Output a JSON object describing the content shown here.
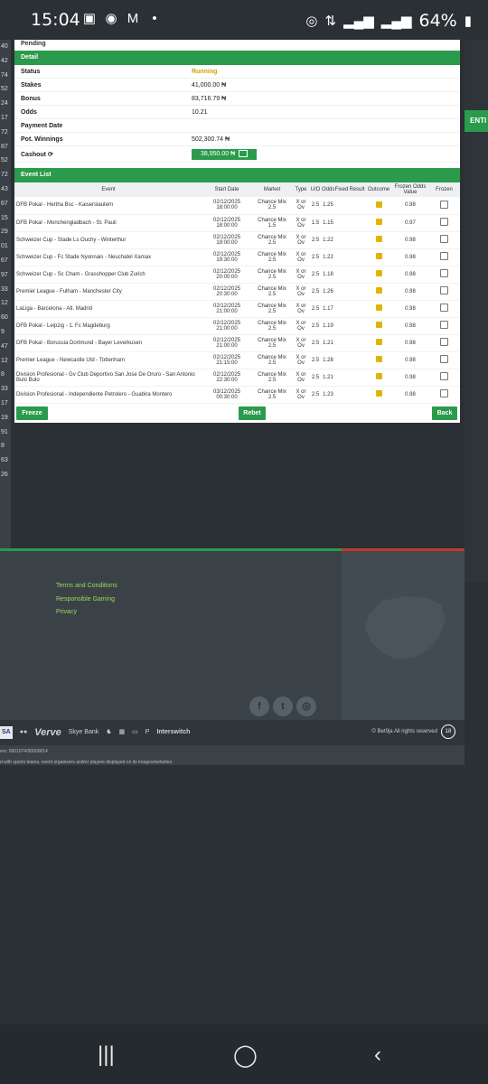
{
  "status_bar": {
    "time": "15:04",
    "battery": "64%",
    "icons": [
      "gallery-icon",
      "whatsapp-icon",
      "gmail-icon",
      "dot-icon",
      "hotspot-icon",
      "data-icon",
      "signal-icon",
      "signal-icon",
      "battery-icon"
    ]
  },
  "gutter_numbers": [
    "40",
    "42",
    "74",
    "52",
    "24",
    "17",
    "72",
    "87",
    "52",
    "72",
    "43",
    "67",
    "15",
    "29",
    "01",
    "67",
    "97",
    "33",
    "12",
    "60",
    "9",
    "47",
    "12",
    "8",
    "33",
    "17",
    "19",
    "91",
    "8",
    "63",
    "26"
  ],
  "enter_label": "ENTI",
  "pending_label": "Pending",
  "detail": {
    "header": "Detail",
    "rows": [
      {
        "label": "Status",
        "value": "Running"
      },
      {
        "label": "Stakes",
        "value": "41,000.00 ₦"
      },
      {
        "label": "Bonus",
        "value": "83,716.79 ₦"
      },
      {
        "label": "Odds",
        "value": "10.21"
      },
      {
        "label": "Payment Date",
        "value": ""
      },
      {
        "label": "Pot. Winnings",
        "value": "502,300.74 ₦"
      }
    ],
    "cashout_label": "Cashout",
    "cashout_value": "38,950.00 ₦"
  },
  "event_list": {
    "header": "Event List",
    "columns": [
      "Event",
      "Start Date",
      "Market",
      "Type",
      "U/O",
      "Odds",
      "Fixed",
      "Result",
      "Outcome",
      "Frozen Odds Value",
      "Frozen"
    ],
    "rows": [
      {
        "event": "DFB Pokal - Hertha Bsc - Kaiserslautern",
        "date": "02/12/2025",
        "time": "18:00:00",
        "market": "Chance Mix",
        "market_val": "2.5",
        "type1": "X or",
        "type2": "Ov",
        "uo": "2.5",
        "odds": "1.25",
        "frozen": "0.98"
      },
      {
        "event": "DFB Pokal - Monchengladbach - St. Pauli",
        "date": "02/12/2025",
        "time": "18:00:00",
        "market": "Chance Mix",
        "market_val": "1.5",
        "type1": "X or",
        "type2": "Ov",
        "uo": "1.5",
        "odds": "1.15",
        "frozen": "0.97"
      },
      {
        "event": "Schweizer Cup - Stade Ls Ouchy - Winterthur",
        "date": "02/12/2025",
        "time": "19:00:00",
        "market": "Chance Mix",
        "market_val": "2.5",
        "type1": "X or",
        "type2": "Ov",
        "uo": "2.5",
        "odds": "1.22",
        "frozen": "0.98"
      },
      {
        "event": "Schweizer Cup - Fc Stade Nyonnais - Neuchatel Xamax",
        "date": "02/12/2025",
        "time": "19:30:00",
        "market": "Chance Mix",
        "market_val": "2.5",
        "type1": "X or",
        "type2": "Ov",
        "uo": "2.5",
        "odds": "1.22",
        "frozen": "0.98"
      },
      {
        "event": "Schweizer Cup - Sc Cham - Grasshopper Club Zurich",
        "date": "02/12/2025",
        "time": "20:00:00",
        "market": "Chance Mix",
        "market_val": "2.5",
        "type1": "X or",
        "type2": "Ov",
        "uo": "2.5",
        "odds": "1.18",
        "frozen": "0.98"
      },
      {
        "event": "Premier League - Fulham - Manchester City",
        "date": "02/12/2025",
        "time": "20:30:00",
        "market": "Chance Mix",
        "market_val": "2.5",
        "type1": "X or",
        "type2": "Ov",
        "uo": "2.5",
        "odds": "1.26",
        "frozen": "0.98"
      },
      {
        "event": "LaLiga - Barcelona - Atl. Madrid",
        "date": "02/12/2025",
        "time": "21:00:00",
        "market": "Chance Mix",
        "market_val": "2.5",
        "type1": "X or",
        "type2": "Ov",
        "uo": "2.5",
        "odds": "1.17",
        "frozen": "0.98"
      },
      {
        "event": "DFB Pokal - Leipzig - 1. Fc Magdeburg",
        "date": "02/12/2025",
        "time": "21:00:00",
        "market": "Chance Mix",
        "market_val": "2.5",
        "type1": "X or",
        "type2": "Ov",
        "uo": "2.5",
        "odds": "1.19",
        "frozen": "0.98"
      },
      {
        "event": "DFB Pokal - Borussia Dortmund - Bayer Leverkusen",
        "date": "02/12/2025",
        "time": "21:00:00",
        "market": "Chance Mix",
        "market_val": "2.5",
        "type1": "X or",
        "type2": "Ov",
        "uo": "2.5",
        "odds": "1.21",
        "frozen": "0.98"
      },
      {
        "event": "Premier League - Newcastle Utd - Tottenham",
        "date": "02/12/2025",
        "time": "21:15:00",
        "market": "Chance Mix",
        "market_val": "2.5",
        "type1": "X or",
        "type2": "Ov",
        "uo": "2.5",
        "odds": "1.28",
        "frozen": "0.98"
      },
      {
        "event": "Division Profesional - Gv Club Deportivo San Jose De Oruro - San Antonio Bulo Bulo",
        "date": "02/12/2025",
        "time": "22:30:00",
        "market": "Chance Mix",
        "market_val": "2.5",
        "type1": "X or",
        "type2": "Ov",
        "uo": "2.5",
        "odds": "1.21",
        "frozen": "0.98"
      },
      {
        "event": "Division Profesional - Independiente Petrolero - Guabira Montero",
        "date": "03/12/2025",
        "time": "00:30:00",
        "market": "Chance Mix",
        "market_val": "2.5",
        "type1": "X or",
        "type2": "Ov",
        "uo": "2.5",
        "odds": "1.23",
        "frozen": "0.98"
      }
    ]
  },
  "buttons": {
    "freeze": "Freeze",
    "rebet": "Rebet",
    "back": "Back"
  },
  "footer": {
    "links": [
      "Terms and Conditions",
      "Responsible Gaming",
      "Privacy"
    ],
    "payment_logos": [
      "SA",
      "Verve",
      "Skye Bank",
      "Interswitch"
    ],
    "copyright": "© Bet9ja All rights reserved",
    "age": "18",
    "legal1": "ers: 0001074/00000014",
    "legal2": "d with sports teams, event organisers and/or players displayed on its images/websites."
  },
  "colors": {
    "accent_green": "#2a9b4c",
    "running_yellow": "#c9a300",
    "footer_red": "#c0392b",
    "link_green": "#9fd65c"
  }
}
